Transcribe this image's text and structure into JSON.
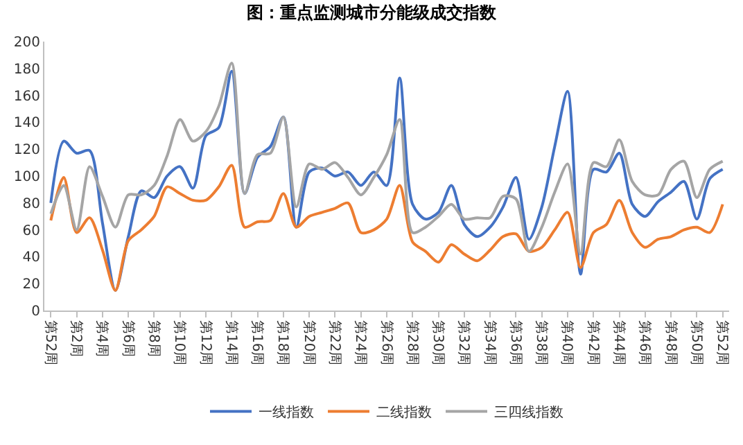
{
  "chart_data": {
    "type": "line",
    "title": "图：重点监测城市分能级成交指数",
    "categories": [
      "第52周",
      null,
      "第2周",
      null,
      "第4周",
      null,
      "第6周",
      null,
      "第8周",
      null,
      "第10周",
      null,
      "第12周",
      null,
      "第14周",
      null,
      "第16周",
      null,
      "第18周",
      null,
      "第20周",
      null,
      "第22周",
      null,
      "第24周",
      null,
      "第26周",
      null,
      "第28周",
      null,
      "第30周",
      null,
      "第32周",
      null,
      "第34周",
      null,
      "第36周",
      null,
      "第38周",
      null,
      "第40周",
      null,
      "第42周",
      null,
      "第44周",
      null,
      "第46周",
      null,
      "第48周",
      null,
      "第50周",
      null,
      "第52周"
    ],
    "series": [
      {
        "name": "一线指数",
        "color": "#4472c4",
        "values": [
          80,
          126,
          117,
          119,
          65,
          15,
          55,
          89,
          84,
          100,
          107,
          91,
          130,
          136,
          178,
          87,
          114,
          122,
          144,
          62,
          103,
          106,
          100,
          103,
          93,
          103,
          93,
          173,
          79,
          68,
          73,
          93,
          64,
          55,
          62,
          77,
          99,
          53,
          77,
          122,
          163,
          27,
          105,
          103,
          117,
          79,
          70,
          81,
          88,
          96,
          68,
          98,
          105
        ]
      },
      {
        "name": "二线指数",
        "color": "#ed7d31",
        "values": [
          67,
          99,
          58,
          69,
          45,
          15,
          52,
          60,
          70,
          92,
          87,
          82,
          82,
          92,
          108,
          62,
          66,
          67,
          87,
          62,
          70,
          73,
          76,
          80,
          58,
          60,
          68,
          93,
          51,
          44,
          36,
          49,
          42,
          37,
          45,
          55,
          57,
          44,
          47,
          60,
          73,
          32,
          58,
          64,
          82,
          58,
          47,
          53,
          55,
          60,
          62,
          58,
          79
        ]
      },
      {
        "name": "三四线指数",
        "color": "#a5a5a5",
        "values": [
          72,
          93,
          60,
          107,
          85,
          62,
          86,
          86,
          93,
          115,
          142,
          126,
          133,
          152,
          184,
          87,
          116,
          117,
          144,
          77,
          109,
          105,
          110,
          99,
          86,
          99,
          116,
          142,
          58,
          62,
          70,
          79,
          68,
          69,
          69,
          85,
          83,
          44,
          62,
          88,
          109,
          42,
          110,
          107,
          127,
          96,
          86,
          86,
          105,
          111,
          84,
          105,
          111
        ]
      }
    ],
    "ylim": [
      0,
      200
    ],
    "yticks": [
      0,
      20,
      40,
      60,
      80,
      100,
      120,
      140,
      160,
      180,
      200
    ],
    "grid": false,
    "legend": "bottom",
    "marker": "none",
    "line_style": "solid"
  }
}
